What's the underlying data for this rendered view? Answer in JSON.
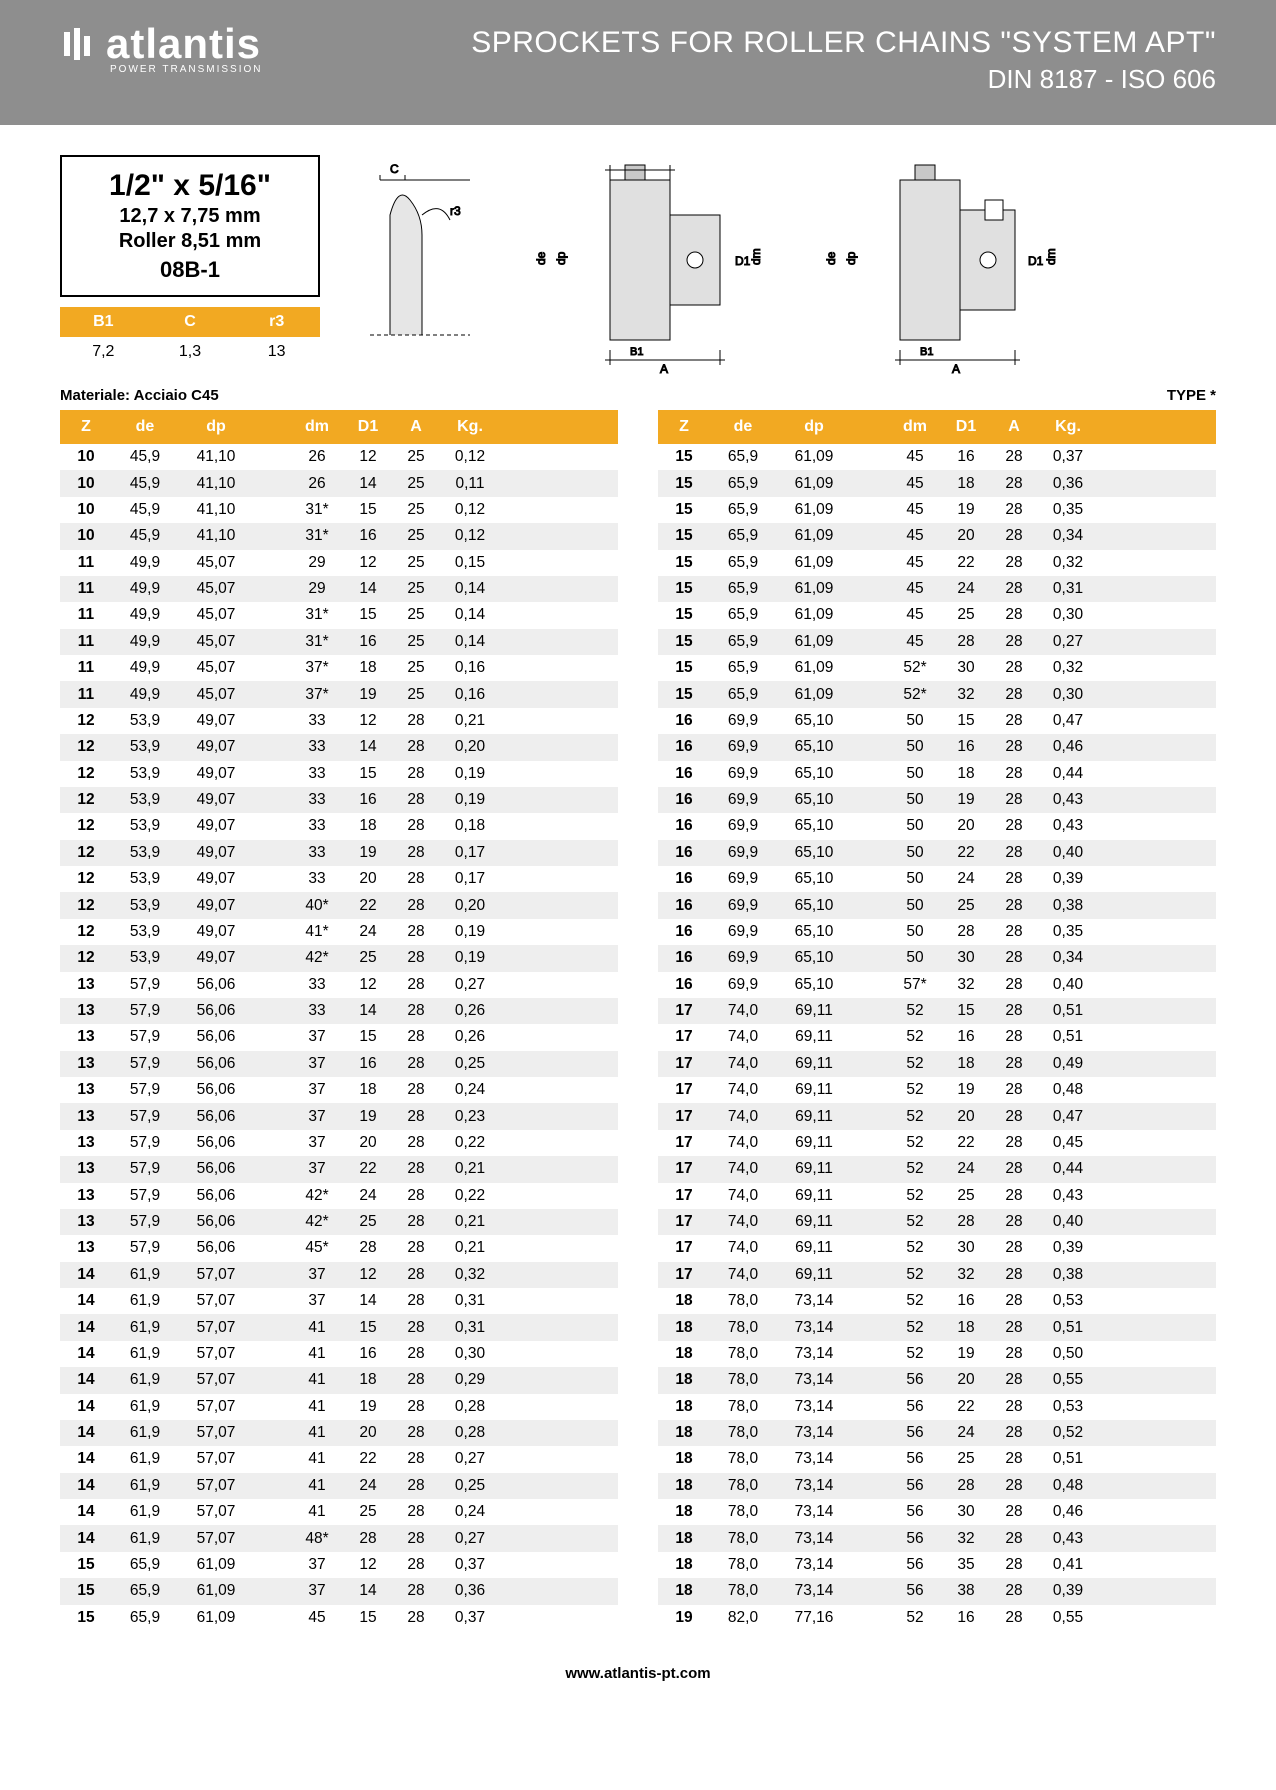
{
  "header": {
    "brand": "atlantis",
    "brand_sub": "POWER TRANSMISSION",
    "title_main": "SPROCKETS FOR ROLLER CHAINS \"SYSTEM APT\"",
    "title_sub": "DIN 8187 - ISO 606"
  },
  "colors": {
    "header_bg": "#8e8e8e",
    "accent": "#f2a922",
    "row_alt": "#eeeeee",
    "text": "#000000",
    "white": "#ffffff"
  },
  "spec": {
    "line1": "1/2\" x 5/16\"",
    "line2": "12,7 x 7,75 mm",
    "line3": "Roller 8,51 mm",
    "line4": "08B-1"
  },
  "small_table": {
    "headers": [
      "B1",
      "C",
      "r3"
    ],
    "row": [
      "7,2",
      "1,3",
      "13"
    ]
  },
  "material_label": "Materiale: Acciaio C45",
  "type_label": "TYPE *",
  "diagram_labels": {
    "c": "C",
    "r3": "r3",
    "de": "de",
    "dp": "dp",
    "D1": "D1",
    "dm": "dm",
    "B1": "B1",
    "A": "A"
  },
  "table_headers": [
    "Z",
    "de",
    "dp",
    "dm",
    "D1",
    "A",
    "Kg."
  ],
  "left_rows": [
    [
      "10",
      "45,9",
      "41,10",
      "26",
      "12",
      "25",
      "0,12"
    ],
    [
      "10",
      "45,9",
      "41,10",
      "26",
      "14",
      "25",
      "0,11"
    ],
    [
      "10",
      "45,9",
      "41,10",
      "31*",
      "15",
      "25",
      "0,12"
    ],
    [
      "10",
      "45,9",
      "41,10",
      "31*",
      "16",
      "25",
      "0,12"
    ],
    [
      "11",
      "49,9",
      "45,07",
      "29",
      "12",
      "25",
      "0,15"
    ],
    [
      "11",
      "49,9",
      "45,07",
      "29",
      "14",
      "25",
      "0,14"
    ],
    [
      "11",
      "49,9",
      "45,07",
      "31*",
      "15",
      "25",
      "0,14"
    ],
    [
      "11",
      "49,9",
      "45,07",
      "31*",
      "16",
      "25",
      "0,14"
    ],
    [
      "11",
      "49,9",
      "45,07",
      "37*",
      "18",
      "25",
      "0,16"
    ],
    [
      "11",
      "49,9",
      "45,07",
      "37*",
      "19",
      "25",
      "0,16"
    ],
    [
      "12",
      "53,9",
      "49,07",
      "33",
      "12",
      "28",
      "0,21"
    ],
    [
      "12",
      "53,9",
      "49,07",
      "33",
      "14",
      "28",
      "0,20"
    ],
    [
      "12",
      "53,9",
      "49,07",
      "33",
      "15",
      "28",
      "0,19"
    ],
    [
      "12",
      "53,9",
      "49,07",
      "33",
      "16",
      "28",
      "0,19"
    ],
    [
      "12",
      "53,9",
      "49,07",
      "33",
      "18",
      "28",
      "0,18"
    ],
    [
      "12",
      "53,9",
      "49,07",
      "33",
      "19",
      "28",
      "0,17"
    ],
    [
      "12",
      "53,9",
      "49,07",
      "33",
      "20",
      "28",
      "0,17"
    ],
    [
      "12",
      "53,9",
      "49,07",
      "40*",
      "22",
      "28",
      "0,20"
    ],
    [
      "12",
      "53,9",
      "49,07",
      "41*",
      "24",
      "28",
      "0,19"
    ],
    [
      "12",
      "53,9",
      "49,07",
      "42*",
      "25",
      "28",
      "0,19"
    ],
    [
      "13",
      "57,9",
      "56,06",
      "33",
      "12",
      "28",
      "0,27"
    ],
    [
      "13",
      "57,9",
      "56,06",
      "33",
      "14",
      "28",
      "0,26"
    ],
    [
      "13",
      "57,9",
      "56,06",
      "37",
      "15",
      "28",
      "0,26"
    ],
    [
      "13",
      "57,9",
      "56,06",
      "37",
      "16",
      "28",
      "0,25"
    ],
    [
      "13",
      "57,9",
      "56,06",
      "37",
      "18",
      "28",
      "0,24"
    ],
    [
      "13",
      "57,9",
      "56,06",
      "37",
      "19",
      "28",
      "0,23"
    ],
    [
      "13",
      "57,9",
      "56,06",
      "37",
      "20",
      "28",
      "0,22"
    ],
    [
      "13",
      "57,9",
      "56,06",
      "37",
      "22",
      "28",
      "0,21"
    ],
    [
      "13",
      "57,9",
      "56,06",
      "42*",
      "24",
      "28",
      "0,22"
    ],
    [
      "13",
      "57,9",
      "56,06",
      "42*",
      "25",
      "28",
      "0,21"
    ],
    [
      "13",
      "57,9",
      "56,06",
      "45*",
      "28",
      "28",
      "0,21"
    ],
    [
      "14",
      "61,9",
      "57,07",
      "37",
      "12",
      "28",
      "0,32"
    ],
    [
      "14",
      "61,9",
      "57,07",
      "37",
      "14",
      "28",
      "0,31"
    ],
    [
      "14",
      "61,9",
      "57,07",
      "41",
      "15",
      "28",
      "0,31"
    ],
    [
      "14",
      "61,9",
      "57,07",
      "41",
      "16",
      "28",
      "0,30"
    ],
    [
      "14",
      "61,9",
      "57,07",
      "41",
      "18",
      "28",
      "0,29"
    ],
    [
      "14",
      "61,9",
      "57,07",
      "41",
      "19",
      "28",
      "0,28"
    ],
    [
      "14",
      "61,9",
      "57,07",
      "41",
      "20",
      "28",
      "0,28"
    ],
    [
      "14",
      "61,9",
      "57,07",
      "41",
      "22",
      "28",
      "0,27"
    ],
    [
      "14",
      "61,9",
      "57,07",
      "41",
      "24",
      "28",
      "0,25"
    ],
    [
      "14",
      "61,9",
      "57,07",
      "41",
      "25",
      "28",
      "0,24"
    ],
    [
      "14",
      "61,9",
      "57,07",
      "48*",
      "28",
      "28",
      "0,27"
    ],
    [
      "15",
      "65,9",
      "61,09",
      "37",
      "12",
      "28",
      "0,37"
    ],
    [
      "15",
      "65,9",
      "61,09",
      "37",
      "14",
      "28",
      "0,36"
    ],
    [
      "15",
      "65,9",
      "61,09",
      "45",
      "15",
      "28",
      "0,37"
    ]
  ],
  "right_rows": [
    [
      "15",
      "65,9",
      "61,09",
      "45",
      "16",
      "28",
      "0,37"
    ],
    [
      "15",
      "65,9",
      "61,09",
      "45",
      "18",
      "28",
      "0,36"
    ],
    [
      "15",
      "65,9",
      "61,09",
      "45",
      "19",
      "28",
      "0,35"
    ],
    [
      "15",
      "65,9",
      "61,09",
      "45",
      "20",
      "28",
      "0,34"
    ],
    [
      "15",
      "65,9",
      "61,09",
      "45",
      "22",
      "28",
      "0,32"
    ],
    [
      "15",
      "65,9",
      "61,09",
      "45",
      "24",
      "28",
      "0,31"
    ],
    [
      "15",
      "65,9",
      "61,09",
      "45",
      "25",
      "28",
      "0,30"
    ],
    [
      "15",
      "65,9",
      "61,09",
      "45",
      "28",
      "28",
      "0,27"
    ],
    [
      "15",
      "65,9",
      "61,09",
      "52*",
      "30",
      "28",
      "0,32"
    ],
    [
      "15",
      "65,9",
      "61,09",
      "52*",
      "32",
      "28",
      "0,30"
    ],
    [
      "16",
      "69,9",
      "65,10",
      "50",
      "15",
      "28",
      "0,47"
    ],
    [
      "16",
      "69,9",
      "65,10",
      "50",
      "16",
      "28",
      "0,46"
    ],
    [
      "16",
      "69,9",
      "65,10",
      "50",
      "18",
      "28",
      "0,44"
    ],
    [
      "16",
      "69,9",
      "65,10",
      "50",
      "19",
      "28",
      "0,43"
    ],
    [
      "16",
      "69,9",
      "65,10",
      "50",
      "20",
      "28",
      "0,43"
    ],
    [
      "16",
      "69,9",
      "65,10",
      "50",
      "22",
      "28",
      "0,40"
    ],
    [
      "16",
      "69,9",
      "65,10",
      "50",
      "24",
      "28",
      "0,39"
    ],
    [
      "16",
      "69,9",
      "65,10",
      "50",
      "25",
      "28",
      "0,38"
    ],
    [
      "16",
      "69,9",
      "65,10",
      "50",
      "28",
      "28",
      "0,35"
    ],
    [
      "16",
      "69,9",
      "65,10",
      "50",
      "30",
      "28",
      "0,34"
    ],
    [
      "16",
      "69,9",
      "65,10",
      "57*",
      "32",
      "28",
      "0,40"
    ],
    [
      "17",
      "74,0",
      "69,11",
      "52",
      "15",
      "28",
      "0,51"
    ],
    [
      "17",
      "74,0",
      "69,11",
      "52",
      "16",
      "28",
      "0,51"
    ],
    [
      "17",
      "74,0",
      "69,11",
      "52",
      "18",
      "28",
      "0,49"
    ],
    [
      "17",
      "74,0",
      "69,11",
      "52",
      "19",
      "28",
      "0,48"
    ],
    [
      "17",
      "74,0",
      "69,11",
      "52",
      "20",
      "28",
      "0,47"
    ],
    [
      "17",
      "74,0",
      "69,11",
      "52",
      "22",
      "28",
      "0,45"
    ],
    [
      "17",
      "74,0",
      "69,11",
      "52",
      "24",
      "28",
      "0,44"
    ],
    [
      "17",
      "74,0",
      "69,11",
      "52",
      "25",
      "28",
      "0,43"
    ],
    [
      "17",
      "74,0",
      "69,11",
      "52",
      "28",
      "28",
      "0,40"
    ],
    [
      "17",
      "74,0",
      "69,11",
      "52",
      "30",
      "28",
      "0,39"
    ],
    [
      "17",
      "74,0",
      "69,11",
      "52",
      "32",
      "28",
      "0,38"
    ],
    [
      "18",
      "78,0",
      "73,14",
      "52",
      "16",
      "28",
      "0,53"
    ],
    [
      "18",
      "78,0",
      "73,14",
      "52",
      "18",
      "28",
      "0,51"
    ],
    [
      "18",
      "78,0",
      "73,14",
      "52",
      "19",
      "28",
      "0,50"
    ],
    [
      "18",
      "78,0",
      "73,14",
      "56",
      "20",
      "28",
      "0,55"
    ],
    [
      "18",
      "78,0",
      "73,14",
      "56",
      "22",
      "28",
      "0,53"
    ],
    [
      "18",
      "78,0",
      "73,14",
      "56",
      "24",
      "28",
      "0,52"
    ],
    [
      "18",
      "78,0",
      "73,14",
      "56",
      "25",
      "28",
      "0,51"
    ],
    [
      "18",
      "78,0",
      "73,14",
      "56",
      "28",
      "28",
      "0,48"
    ],
    [
      "18",
      "78,0",
      "73,14",
      "56",
      "30",
      "28",
      "0,46"
    ],
    [
      "18",
      "78,0",
      "73,14",
      "56",
      "32",
      "28",
      "0,43"
    ],
    [
      "18",
      "78,0",
      "73,14",
      "56",
      "35",
      "28",
      "0,41"
    ],
    [
      "18",
      "78,0",
      "73,14",
      "56",
      "38",
      "28",
      "0,39"
    ],
    [
      "19",
      "82,0",
      "77,16",
      "52",
      "16",
      "28",
      "0,55"
    ]
  ],
  "footer_url": "www.atlantis-pt.com"
}
